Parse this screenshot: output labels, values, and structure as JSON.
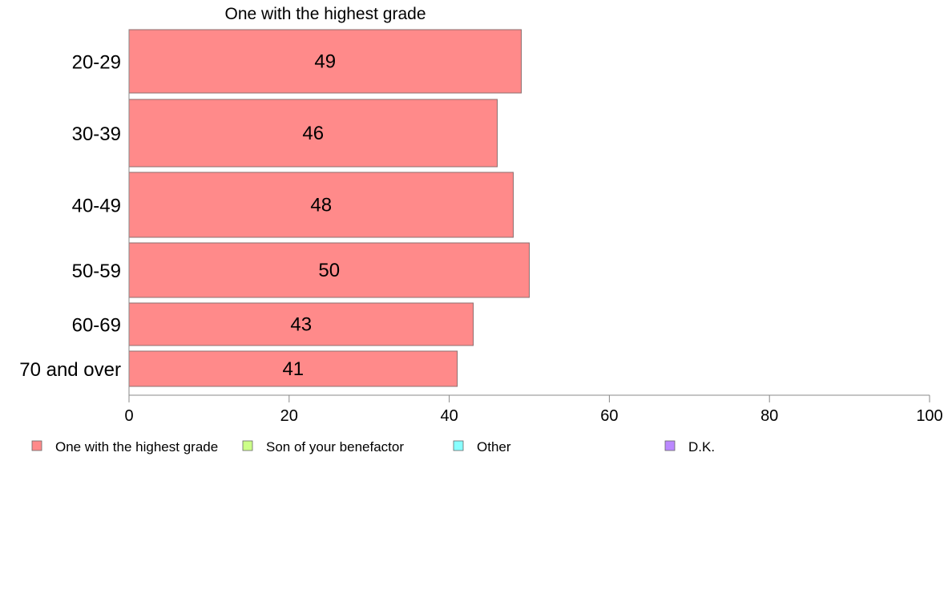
{
  "chart_data": {
    "type": "bar",
    "orientation": "horizontal",
    "title": "One with the highest grade",
    "categories": [
      "20-29",
      "30-39",
      "40-49",
      "50-59",
      "60-69",
      "70 and over"
    ],
    "series": [
      {
        "name": "One with the highest grade",
        "color": "#ff8a8a",
        "values": [
          49,
          46,
          48,
          50,
          43,
          41
        ]
      }
    ],
    "data_labels": [
      "49",
      "46",
      "48",
      "50",
      "43",
      "41"
    ],
    "xlim": [
      0,
      100
    ],
    "xticks": [
      "0",
      "20",
      "40",
      "60",
      "80",
      "100"
    ],
    "grid": false,
    "legend_position": "bottom",
    "legend": [
      {
        "label": "One with the highest grade",
        "color": "#ff8a8a"
      },
      {
        "label": "Son of your benefactor",
        "color": "#ccff88"
      },
      {
        "label": "Other",
        "color": "#88ffff"
      },
      {
        "label": "D.K.",
        "color": "#bb88ff"
      }
    ]
  }
}
